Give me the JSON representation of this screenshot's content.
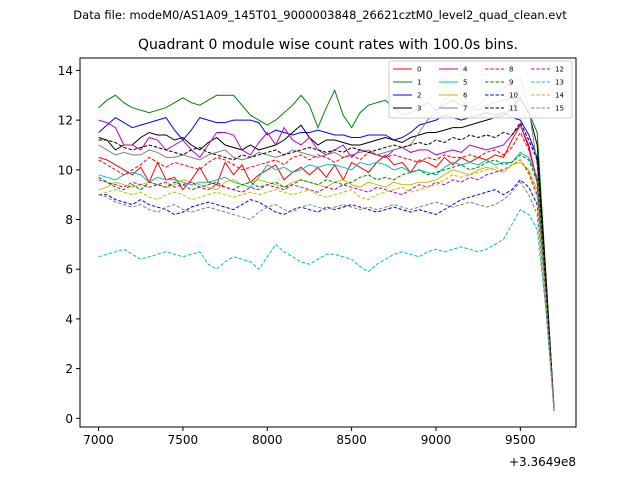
{
  "chart_data": {
    "type": "line",
    "suptitle": "Data file: modeM0/AS1A09_145T01_9000003848_26621cztM0_level2_quad_clean.evt",
    "title": "Quadrant 0 module wise count rates with 100.0s bins.",
    "xlabel": "",
    "ylabel": "",
    "offset_text": "+3.3649e8",
    "xlim": [
      6890,
      9830
    ],
    "ylim": [
      -0.35,
      14.5
    ],
    "xticks": [
      7000,
      7500,
      8000,
      8500,
      9000,
      9500
    ],
    "xtick_labels": [
      "7000",
      "7500",
      "8000",
      "8500",
      "9000",
      "9500"
    ],
    "yticks": [
      0,
      2,
      4,
      6,
      8,
      10,
      12,
      14
    ],
    "ytick_labels": [
      "0",
      "2",
      "4",
      "6",
      "8",
      "10",
      "12",
      "14"
    ],
    "legend_position": "top-right",
    "legend_columns": 4,
    "x": [
      7000,
      7050,
      7100,
      7150,
      7200,
      7250,
      7300,
      7350,
      7400,
      7450,
      7500,
      7550,
      7600,
      7650,
      7700,
      7750,
      7800,
      7850,
      7900,
      7950,
      8000,
      8050,
      8100,
      8150,
      8200,
      8250,
      8300,
      8350,
      8400,
      8450,
      8500,
      8550,
      8600,
      8650,
      8700,
      8750,
      8800,
      8850,
      8900,
      8950,
      9000,
      9050,
      9100,
      9150,
      9200,
      9250,
      9300,
      9350,
      9400,
      9450,
      9500,
      9550,
      9600,
      9650,
      9700
    ],
    "series": [
      {
        "name": "0",
        "color": "#ff0000",
        "dash": false,
        "values": [
          10.5,
          10.4,
          10.2,
          10.0,
          9.8,
          10.1,
          9.5,
          10.3,
          9.6,
          9.7,
          9.2,
          9.6,
          10.1,
          9.5,
          9.4,
          10.3,
          9.8,
          10.2,
          9.5,
          9.8,
          10.0,
          10.2,
          9.6,
          9.9,
          10.1,
          9.8,
          10.1,
          9.7,
          10.2,
          9.6,
          10.3,
          10.1,
          9.9,
          10.3,
          10.6,
          10.2,
          10.3,
          9.9,
          10.4,
          10.3,
          10.1,
          10.5,
          10.2,
          10.5,
          10.3,
          10.5,
          10.4,
          10.6,
          10.5,
          11.2,
          11.8,
          10.9,
          9.5,
          5.5,
          0.3
        ]
      },
      {
        "name": "1",
        "color": "#008000",
        "dash": false,
        "values": [
          12.5,
          12.8,
          13.0,
          12.7,
          12.5,
          12.4,
          12.3,
          12.4,
          12.5,
          12.7,
          12.9,
          12.7,
          12.6,
          12.8,
          13.0,
          13.0,
          13.0,
          12.6,
          12.2,
          12.0,
          11.8,
          12.0,
          12.3,
          12.6,
          13.0,
          12.6,
          11.7,
          12.5,
          13.2,
          12.2,
          11.7,
          12.3,
          12.6,
          12.7,
          12.8,
          12.5,
          12.2,
          12.3,
          12.5,
          12.7,
          12.4,
          12.6,
          12.8,
          12.6,
          12.5,
          12.4,
          12.6,
          12.7,
          12.8,
          12.9,
          12.9,
          12.3,
          11.5,
          6.0,
          0.4
        ]
      },
      {
        "name": "2",
        "color": "#0000ff",
        "dash": false,
        "values": [
          11.5,
          11.8,
          12.1,
          11.9,
          11.7,
          11.8,
          11.9,
          12.0,
          12.1,
          11.6,
          11.2,
          11.6,
          12.1,
          12.0,
          11.9,
          11.9,
          12.0,
          12.0,
          12.0,
          11.9,
          11.4,
          11.6,
          11.5,
          11.4,
          11.5,
          11.5,
          11.6,
          11.5,
          11.4,
          11.4,
          11.3,
          11.3,
          11.4,
          11.4,
          11.4,
          11.2,
          11.3,
          11.5,
          11.8,
          11.9,
          12.0,
          12.2,
          12.1,
          12.0,
          12.1,
          12.2,
          12.3,
          12.2,
          12.3,
          12.1,
          12.0,
          11.4,
          10.5,
          5.8,
          0.3
        ]
      },
      {
        "name": "3",
        "color": "#000000",
        "dash": false,
        "values": [
          11.3,
          11.2,
          10.8,
          11.0,
          11.0,
          11.3,
          11.5,
          11.4,
          11.4,
          11.2,
          11.3,
          11.0,
          10.8,
          11.1,
          11.3,
          11.0,
          10.9,
          10.8,
          11.0,
          10.8,
          10.9,
          11.0,
          11.2,
          11.5,
          11.8,
          11.3,
          11.0,
          11.2,
          11.2,
          11.1,
          11.0,
          11.0,
          11.1,
          11.2,
          11.3,
          11.2,
          11.1,
          11.3,
          11.4,
          11.5,
          11.5,
          11.6,
          11.7,
          11.7,
          11.8,
          11.9,
          12.0,
          12.1,
          12.2,
          12.5,
          12.9,
          12.3,
          11.0,
          5.9,
          0.3
        ]
      },
      {
        "name": "4",
        "color": "#bf00bf",
        "dash": false,
        "values": [
          12.0,
          11.9,
          11.7,
          11.0,
          11.0,
          10.8,
          11.3,
          11.2,
          10.8,
          11.0,
          11.2,
          10.8,
          10.5,
          11.0,
          11.5,
          11.5,
          11.4,
          10.8,
          10.6,
          11.1,
          11.5,
          11.0,
          11.7,
          11.2,
          11.0,
          11.3,
          10.8,
          10.6,
          10.8,
          11.0,
          10.5,
          10.8,
          10.7,
          10.6,
          10.5,
          10.8,
          10.9,
          10.7,
          10.8,
          10.8,
          10.6,
          10.7,
          10.8,
          10.7,
          11.0,
          10.9,
          10.8,
          10.9,
          11.0,
          11.4,
          11.8,
          11.0,
          9.5,
          5.2,
          0.3
        ]
      },
      {
        "name": "5",
        "color": "#00bfbf",
        "dash": false,
        "values": [
          9.8,
          9.7,
          9.6,
          9.8,
          9.9,
          9.8,
          9.5,
          9.7,
          9.6,
          9.6,
          9.5,
          9.4,
          9.5,
          9.5,
          9.6,
          9.7,
          9.5,
          9.4,
          9.3,
          9.7,
          10.2,
          10.0,
          10.1,
          9.9,
          10.0,
          10.2,
          10.1,
          10.2,
          10.2,
          10.1,
          10.0,
          10.3,
          10.2,
          10.3,
          10.2,
          10.0,
          10.1,
          9.9,
          10.0,
          9.9,
          9.8,
          10.1,
          10.3,
          10.2,
          10.3,
          10.2,
          10.4,
          10.2,
          10.3,
          10.3,
          10.7,
          10.5,
          9.7,
          5.2,
          0.3
        ]
      },
      {
        "name": "6",
        "color": "#bfbf00",
        "dash": false,
        "values": [
          9.2,
          9.3,
          9.5,
          9.4,
          9.3,
          9.4,
          9.5,
          9.4,
          9.3,
          9.4,
          9.6,
          9.5,
          9.4,
          9.3,
          9.2,
          9.5,
          9.6,
          9.4,
          9.5,
          9.6,
          9.5,
          9.4,
          9.3,
          9.5,
          9.6,
          9.5,
          9.4,
          9.3,
          9.5,
          9.6,
          9.4,
          9.3,
          9.5,
          9.4,
          9.3,
          9.5,
          9.4,
          9.4,
          9.5,
          9.5,
          9.6,
          9.8,
          10.0,
          9.9,
          9.8,
          10.0,
          10.1,
          10.0,
          9.9,
          10.2,
          10.3,
          10.0,
          9.2,
          5.0,
          0.3
        ]
      },
      {
        "name": "7",
        "color": "#808080",
        "dash": false,
        "values": [
          11.0,
          10.8,
          10.6,
          10.7,
          10.6,
          10.6,
          10.8,
          10.7,
          10.5,
          10.5,
          10.6,
          10.5,
          10.4,
          10.6,
          10.7,
          10.8,
          10.5,
          10.4,
          10.5,
          10.7,
          10.6,
          10.5,
          10.6,
          10.8,
          10.7,
          10.6,
          10.5,
          10.6,
          10.7,
          10.5,
          10.6,
          10.7,
          10.8,
          10.6,
          10.7,
          10.8,
          10.9,
          11.0,
          11.5,
          12.0,
          12.3,
          12.8,
          13.1,
          12.8,
          12.5,
          12.6,
          12.9,
          13.1,
          13.3,
          13.5,
          13.7,
          12.5,
          10.2,
          5.5,
          0.3
        ]
      },
      {
        "name": "8",
        "color": "#ff0000",
        "dash": true,
        "values": [
          10.4,
          10.2,
          10.0,
          9.8,
          10.0,
          10.2,
          10.5,
          10.3,
          10.1,
          10.3,
          10.2,
          10.1,
          10.0,
          10.3,
          10.5,
          10.4,
          10.2,
          10.0,
          10.1,
          10.2,
          10.3,
          10.4,
          10.2,
          10.5,
          10.6,
          10.4,
          10.6,
          10.5,
          10.3,
          10.5,
          10.6,
          10.4,
          10.7,
          10.6,
          10.5,
          10.6,
          10.5,
          10.4,
          10.3,
          10.5,
          10.4,
          10.6,
          10.5,
          10.5,
          10.6,
          10.5,
          10.7,
          10.8,
          10.6,
          10.9,
          11.5,
          10.8,
          9.6,
          5.4,
          0.3
        ]
      },
      {
        "name": "9",
        "color": "#008000",
        "dash": true,
        "values": [
          9.7,
          9.5,
          9.3,
          9.2,
          9.4,
          9.2,
          9.5,
          9.4,
          9.3,
          9.5,
          9.4,
          9.2,
          9.3,
          9.4,
          9.5,
          9.3,
          9.2,
          9.4,
          9.5,
          9.3,
          9.4,
          9.5,
          9.3,
          9.4,
          9.6,
          9.5,
          9.4,
          9.6,
          9.5,
          9.4,
          9.5,
          9.7,
          9.8,
          9.6,
          9.7,
          9.6,
          9.8,
          9.9,
          10.0,
          9.8,
          9.9,
          10.0,
          10.1,
          10.2,
          10.0,
          10.1,
          10.3,
          10.4,
          10.2,
          10.3,
          10.6,
          10.4,
          9.5,
          5.2,
          0.3
        ]
      },
      {
        "name": "10",
        "color": "#0000ff",
        "dash": true,
        "values": [
          9.0,
          9.0,
          8.8,
          8.7,
          8.6,
          8.8,
          8.6,
          8.5,
          8.4,
          8.2,
          8.3,
          8.5,
          8.6,
          8.7,
          8.6,
          8.5,
          8.4,
          8.6,
          8.8,
          8.7,
          8.5,
          8.3,
          8.2,
          8.4,
          8.5,
          8.4,
          8.3,
          8.5,
          8.4,
          8.5,
          8.6,
          8.5,
          8.4,
          8.3,
          8.4,
          8.5,
          8.4,
          8.3,
          8.4,
          8.3,
          8.2,
          8.4,
          8.6,
          8.8,
          8.9,
          9.0,
          9.1,
          9.2,
          9.0,
          9.2,
          9.6,
          9.3,
          8.6,
          5.0,
          0.3
        ]
      },
      {
        "name": "11",
        "color": "#000000",
        "dash": true,
        "values": [
          11.2,
          11.2,
          11.1,
          10.9,
          10.8,
          10.9,
          11.0,
          10.9,
          10.8,
          10.7,
          10.6,
          10.8,
          10.9,
          10.7,
          10.6,
          10.5,
          10.4,
          10.6,
          10.5,
          10.6,
          10.7,
          10.8,
          10.6,
          10.7,
          10.8,
          10.9,
          10.8,
          10.7,
          10.8,
          10.7,
          10.9,
          10.8,
          10.7,
          10.8,
          10.9,
          11.0,
          10.9,
          11.0,
          11.1,
          11.0,
          11.2,
          11.1,
          11.3,
          11.2,
          11.4,
          11.3,
          11.4,
          11.3,
          11.5,
          11.4,
          11.9,
          11.2,
          10.4,
          5.6,
          0.3
        ]
      },
      {
        "name": "12",
        "color": "#bf00bf",
        "dash": true,
        "values": [
          9.6,
          9.5,
          9.4,
          9.3,
          9.5,
          9.4,
          9.3,
          9.4,
          9.5,
          9.3,
          9.4,
          9.5,
          9.3,
          9.2,
          9.4,
          9.3,
          9.2,
          9.1,
          9.3,
          9.2,
          9.4,
          9.3,
          9.2,
          9.4,
          9.3,
          9.2,
          9.1,
          9.3,
          9.2,
          9.4,
          9.3,
          9.2,
          9.1,
          9.3,
          9.2,
          9.1,
          9.0,
          9.2,
          9.4,
          9.3,
          9.5,
          9.4,
          9.6,
          9.5,
          9.7,
          9.6,
          9.8,
          9.9,
          10.0,
          10.2,
          10.4,
          9.9,
          9.0,
          5.0,
          0.3
        ]
      },
      {
        "name": "13",
        "color": "#00bfbf",
        "dash": true,
        "values": [
          6.5,
          6.6,
          6.7,
          6.8,
          6.6,
          6.4,
          6.5,
          6.6,
          6.7,
          6.6,
          6.5,
          6.6,
          6.7,
          6.2,
          6.0,
          6.3,
          6.5,
          6.4,
          6.3,
          6.0,
          6.5,
          7.0,
          6.7,
          6.5,
          6.3,
          6.2,
          6.4,
          6.6,
          6.6,
          6.5,
          6.4,
          6.1,
          5.9,
          6.2,
          6.4,
          6.6,
          6.7,
          6.6,
          6.5,
          6.7,
          6.8,
          6.7,
          6.8,
          6.9,
          6.8,
          6.7,
          6.8,
          7.0,
          7.2,
          7.8,
          8.4,
          8.2,
          7.6,
          4.5,
          0.3
        ]
      },
      {
        "name": "14",
        "color": "#bfbf00",
        "dash": true,
        "values": [
          9.0,
          9.1,
          9.2,
          9.1,
          9.0,
          9.1,
          8.9,
          8.8,
          9.0,
          9.1,
          9.0,
          8.8,
          8.9,
          9.0,
          9.1,
          9.0,
          8.9,
          9.0,
          9.1,
          9.0,
          9.1,
          9.2,
          9.1,
          9.0,
          9.1,
          9.2,
          9.0,
          8.9,
          9.0,
          9.1,
          9.2,
          8.9,
          8.8,
          9.0,
          9.1,
          9.2,
          9.3,
          9.1,
          9.2,
          9.3,
          9.4,
          9.6,
          9.8,
          9.7,
          9.8,
          9.9,
          10.0,
          10.1,
          10.0,
          10.2,
          10.4,
          9.8,
          8.9,
          4.9,
          0.3
        ]
      },
      {
        "name": "15",
        "color": "#808080",
        "dash": true,
        "values": [
          9.0,
          8.9,
          8.7,
          8.6,
          8.5,
          8.6,
          8.4,
          8.3,
          8.5,
          8.6,
          8.4,
          8.3,
          8.4,
          8.5,
          8.4,
          8.3,
          8.2,
          8.1,
          8.0,
          8.3,
          8.5,
          8.6,
          8.4,
          8.3,
          8.5,
          8.6,
          8.5,
          8.4,
          8.5,
          8.6,
          8.5,
          8.4,
          8.5,
          8.4,
          8.5,
          8.6,
          8.5,
          8.4,
          8.5,
          8.6,
          8.7,
          8.6,
          8.5,
          8.6,
          8.7,
          8.6,
          8.5,
          8.6,
          8.8,
          9.1,
          9.5,
          9.0,
          8.2,
          4.6,
          0.3
        ]
      }
    ]
  }
}
